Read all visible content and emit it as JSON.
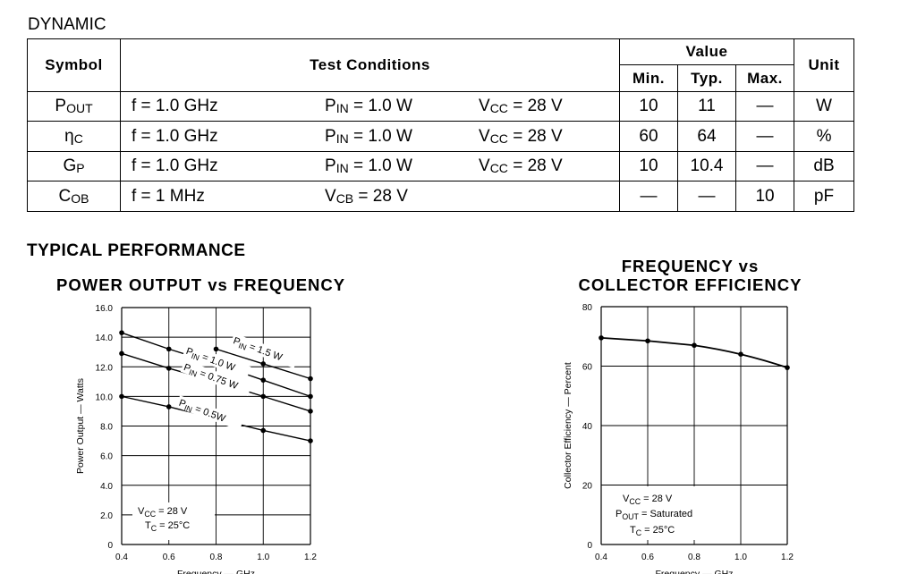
{
  "dynamic": {
    "title": "DYNAMIC",
    "headers": {
      "symbol": "Symbol",
      "test_conditions": "Test Conditions",
      "value": "Value",
      "min": "Min.",
      "typ": "Typ.",
      "max": "Max.",
      "unit": "Unit"
    },
    "rows": [
      {
        "sym_main": "P",
        "sym_sub": "OUT",
        "c1": "f = 1.0 GHz",
        "c2_main": "P",
        "c2_sub": "IN",
        "c2_rest": " = 1.0 W",
        "c3_main": "V",
        "c3_sub": "CC",
        "c3_rest": " = 28 V",
        "min": "10",
        "typ": "11",
        "max": "—",
        "unit": "W"
      },
      {
        "sym_main": "η",
        "sym_sub": "C",
        "c1": "f = 1.0 GHz",
        "c2_main": "P",
        "c2_sub": "IN",
        "c2_rest": " = 1.0 W",
        "c3_main": "V",
        "c3_sub": "CC",
        "c3_rest": " = 28 V",
        "min": "60",
        "typ": "64",
        "max": "—",
        "unit": "%"
      },
      {
        "sym_main": "G",
        "sym_sub": "P",
        "c1": "f = 1.0 GHz",
        "c2_main": "P",
        "c2_sub": "IN",
        "c2_rest": " = 1.0 W",
        "c3_main": "V",
        "c3_sub": "CC",
        "c3_rest": " = 28 V",
        "min": "10",
        "typ": "10.4",
        "max": "—",
        "unit": "dB"
      },
      {
        "sym_main": "C",
        "sym_sub": "OB",
        "c1": "f = 1 MHz",
        "c2_main": "V",
        "c2_sub": "CB",
        "c2_rest": " = 28 V",
        "c3_main": "",
        "c3_sub": "",
        "c3_rest": "",
        "min": "—",
        "typ": "—",
        "max": "10",
        "unit": "pF"
      }
    ]
  },
  "typical_performance": {
    "title": "TYPICAL PERFORMANCE"
  },
  "chart_data": [
    {
      "type": "line",
      "title": "POWER OUTPUT vs FREQUENCY",
      "xlabel": "Frequency — GHz",
      "ylabel": "Power Output — Watts",
      "xlim": [
        0.4,
        1.2
      ],
      "ylim": [
        0,
        16
      ],
      "x_ticks": [
        "0.4",
        "0.6",
        "0.8",
        "1.0",
        "1.2"
      ],
      "y_ticks": [
        "0",
        "2.0",
        "4.0",
        "6.0",
        "8.0",
        "10.0",
        "12.0",
        "14.0",
        "16.0"
      ],
      "grid": true,
      "series": [
        {
          "name_main": "P",
          "name_sub": "IN",
          "name_rest": " = 1.5 W",
          "x": [
            0.8,
            1.0,
            1.2
          ],
          "y": [
            13.2,
            12.2,
            11.2
          ]
        },
        {
          "name_main": "P",
          "name_sub": "IN",
          "name_rest": " = 1.0 W",
          "x": [
            0.4,
            0.6,
            0.8,
            1.0,
            1.2
          ],
          "y": [
            14.3,
            13.2,
            12.2,
            11.1,
            10.0
          ]
        },
        {
          "name_main": "P",
          "name_sub": "IN",
          "name_rest": " = 0.75 W",
          "x": [
            0.4,
            0.6,
            0.8,
            1.0,
            1.2
          ],
          "y": [
            12.9,
            11.9,
            11.0,
            10.0,
            9.0
          ]
        },
        {
          "name_main": "P",
          "name_sub": "IN",
          "name_rest": " = 0.5W",
          "x": [
            0.4,
            0.6,
            0.8,
            1.0,
            1.2
          ],
          "y": [
            10.0,
            9.3,
            8.5,
            7.7,
            7.0
          ]
        }
      ],
      "annotation": {
        "vcc_main": "V",
        "vcc_sub": "CC",
        "vcc_rest": " = 28 V",
        "tc_main": "T",
        "tc_sub": "C",
        "tc_rest": " = 25°C"
      }
    },
    {
      "type": "line",
      "title_line1": "FREQUENCY vs",
      "title_line2": "COLLECTOR EFFICIENCY",
      "xlabel": "Frequency — GHz",
      "ylabel": "Collector Efficiency — Percent",
      "xlim": [
        0.4,
        1.2
      ],
      "ylim": [
        0,
        80
      ],
      "x_ticks": [
        "0.4",
        "0.6",
        "0.8",
        "1.0",
        "1.2"
      ],
      "y_ticks": [
        "0",
        "20",
        "40",
        "60",
        "80"
      ],
      "grid": true,
      "series": [
        {
          "x": [
            0.4,
            0.6,
            0.8,
            1.0,
            1.2
          ],
          "y": [
            69.5,
            68.5,
            67.0,
            64.0,
            59.5
          ]
        }
      ],
      "annotation": {
        "vcc_main": "V",
        "vcc_sub": "CC",
        "vcc_rest": " = 28 V",
        "pout_main": "P",
        "pout_sub": "OUT",
        "pout_rest": " = Saturated",
        "tc_main": "T",
        "tc_sub": "C",
        "tc_rest": " = 25°C"
      }
    }
  ]
}
